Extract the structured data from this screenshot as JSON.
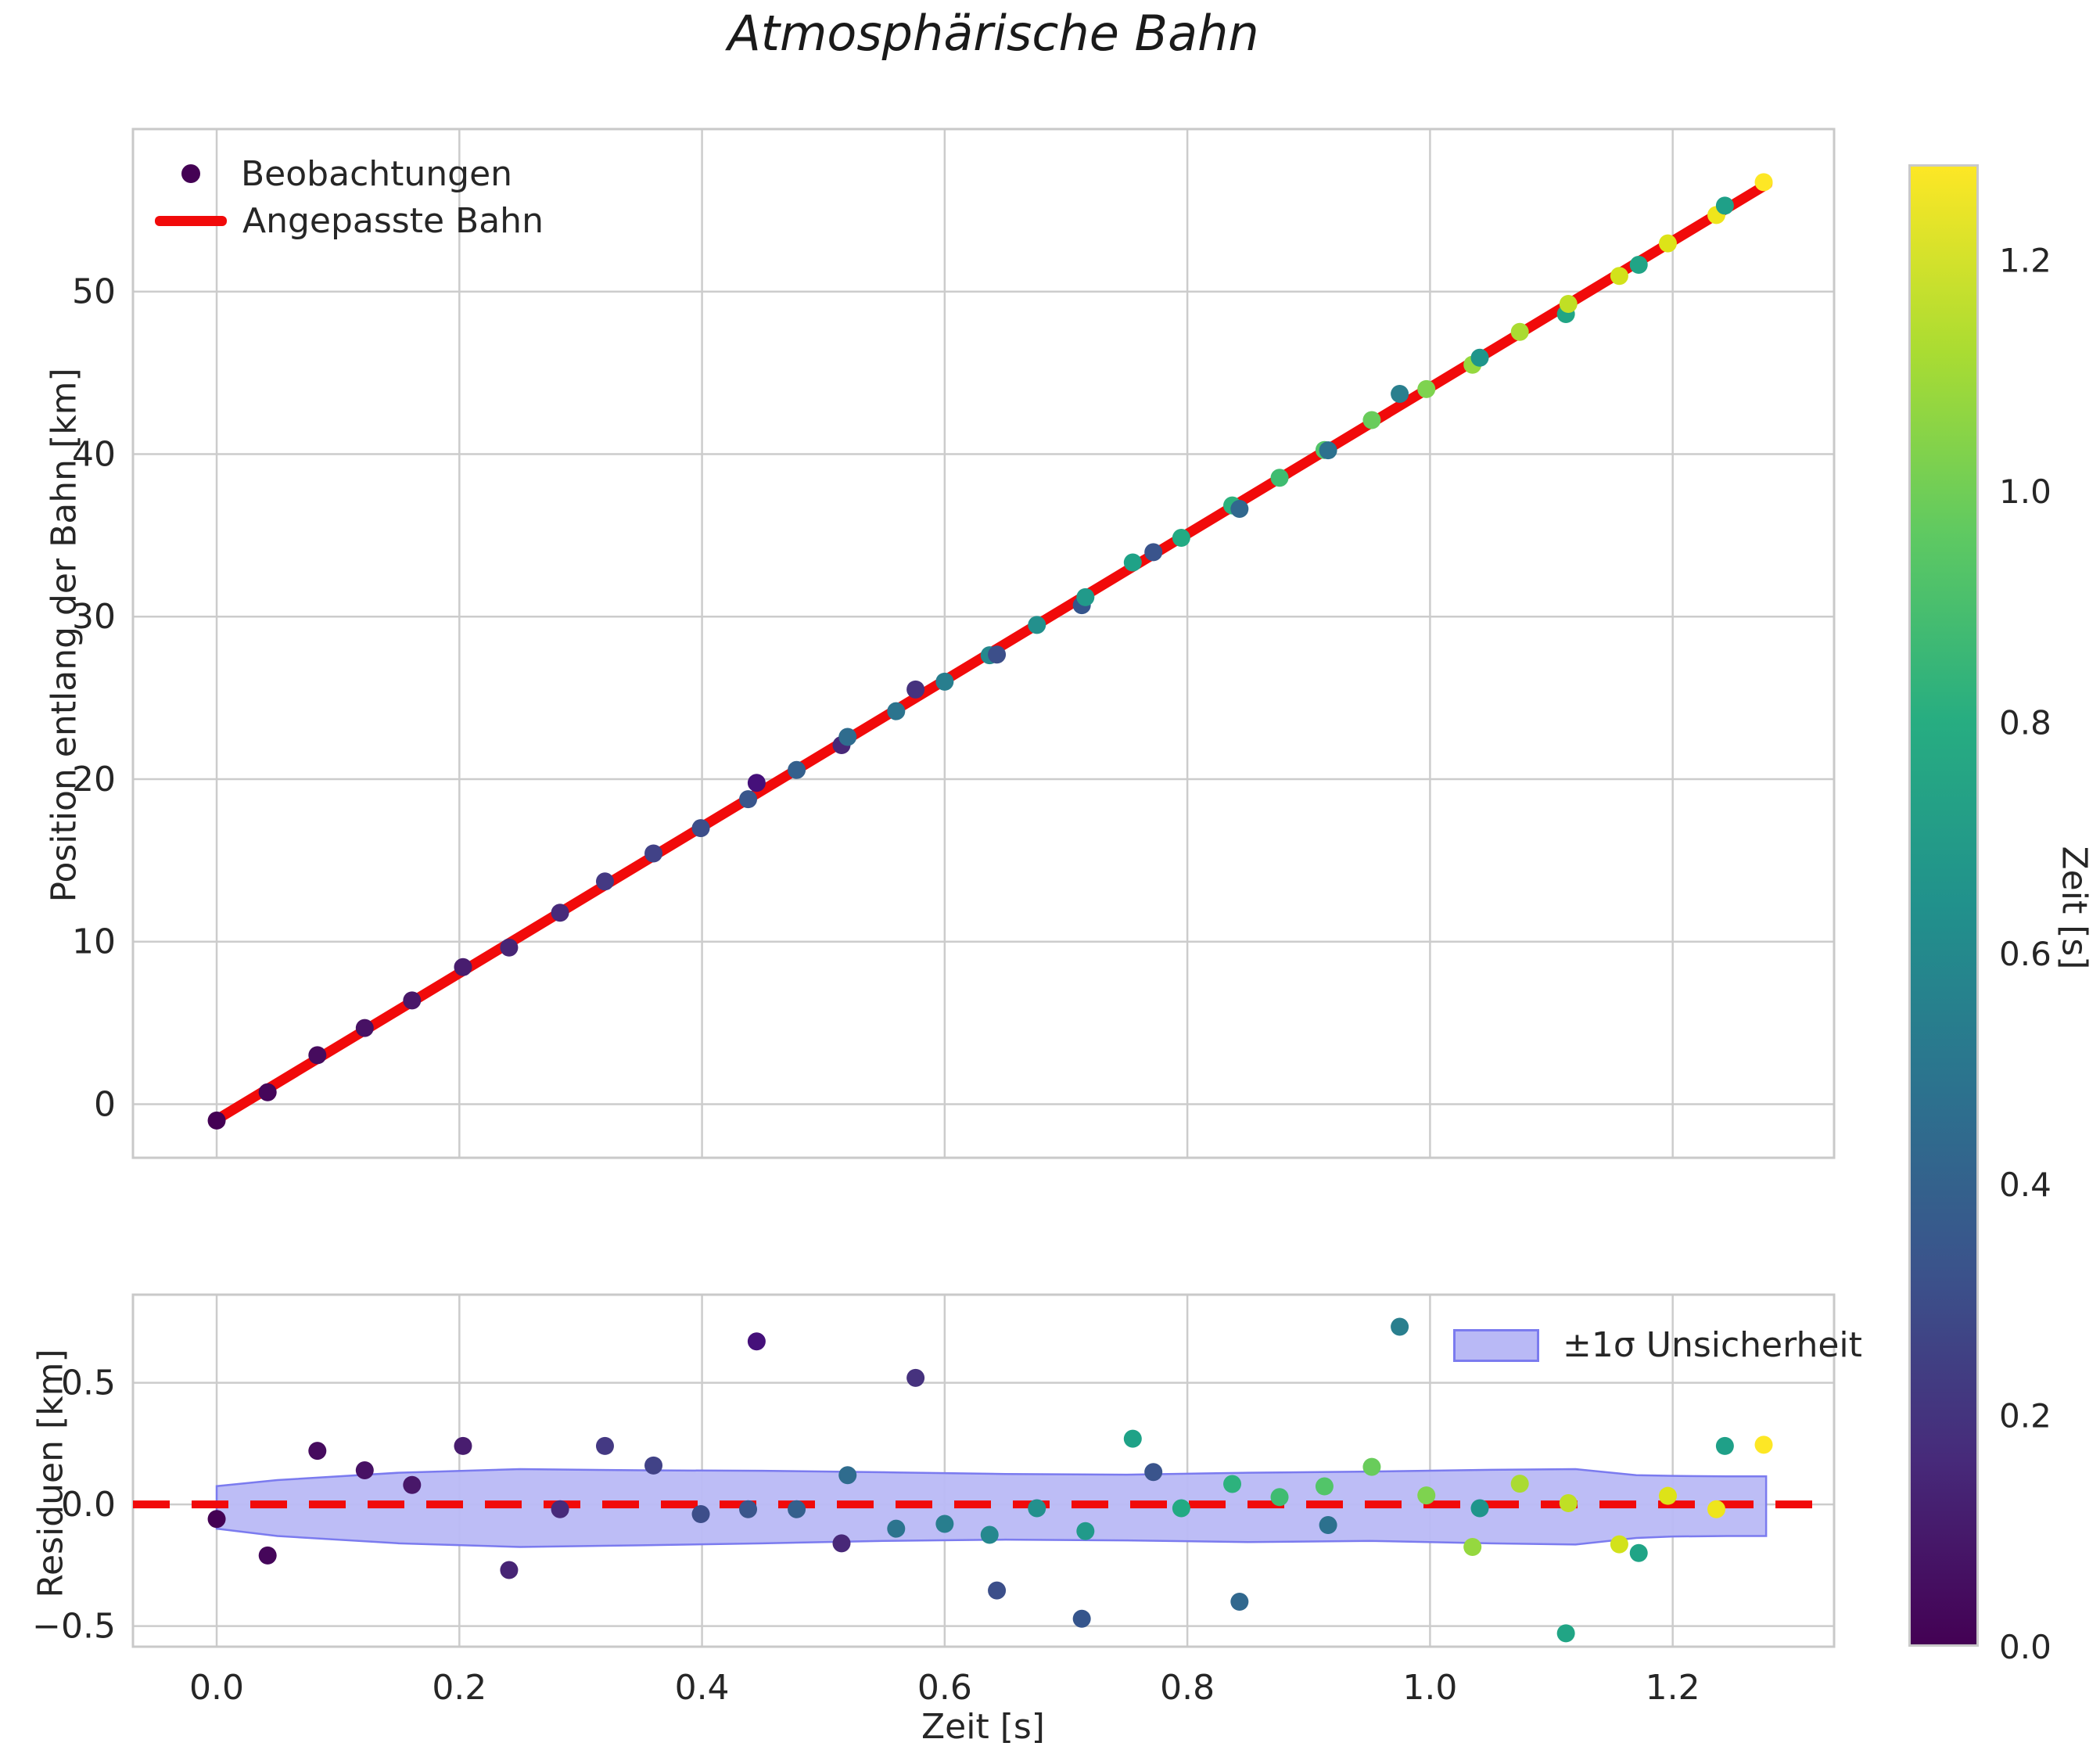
{
  "title": "Atmosphärische Bahn",
  "colors": {
    "fit_line": "#f10a0a",
    "zero_line": "#f10a0a",
    "band_fill": "#b9b9f6",
    "band_edge": "#7b7bef",
    "grid": "#cccccc",
    "spine": "#c9c9c9",
    "text": "#262626",
    "legend_marker": "#440154",
    "viridis_stops": [
      "#440154",
      "#472a7a",
      "#3b528b",
      "#2c728e",
      "#21918c",
      "#27ad81",
      "#5ec962",
      "#aadc32",
      "#fde725"
    ]
  },
  "top_plot": {
    "ylabel": "Position entlang der Bahn [km]",
    "ytick_labels": [
      "0",
      "10",
      "20",
      "30",
      "40",
      "50"
    ],
    "legend": {
      "observations_label": "Beobachtungen",
      "fit_label": "Angepasste Bahn"
    }
  },
  "bottom_plot": {
    "ylabel": "Residuen [km]",
    "xlabel": "Zeit [s]",
    "ytick_labels": [
      "0.5",
      "0.0",
      "−0.5"
    ],
    "xtick_labels": [
      "0.0",
      "0.2",
      "0.4",
      "0.6",
      "0.8",
      "1.0",
      "1.2"
    ],
    "legend_label": "±1σ Unsicherheit"
  },
  "colorbar": {
    "label": "Zeit [s]",
    "tick_labels": [
      "0.0",
      "0.2",
      "0.4",
      "0.6",
      "0.8",
      "1.0",
      "1.2"
    ],
    "tick_values": [
      0.0,
      0.2,
      0.4,
      0.6,
      0.8,
      1.0,
      1.2
    ],
    "vmin": 0.0,
    "vmax": 1.283
  },
  "chart_data": [
    {
      "type": "scatter",
      "title": "Atmosphärische Bahn",
      "ylabel": "Position entlang der Bahn [km]",
      "xlim": [
        -0.069,
        1.333
      ],
      "ylim": [
        -3.3,
        60.0
      ],
      "yticks": [
        0,
        10,
        20,
        30,
        40,
        50
      ],
      "xticks": [
        0.0,
        0.2,
        0.4,
        0.6,
        0.8,
        1.0,
        1.2
      ],
      "grid": true,
      "legend_position": "upper left",
      "fit": {
        "name": "Angepasste Bahn",
        "intercept": -0.95,
        "slope": 45.05,
        "t_start": 0.0,
        "t_end": 1.278
      },
      "note": "observation position = intercept + slope*t + residual; points colored by Zeit via viridis",
      "points": [
        {
          "t": 0.0,
          "residual": -0.06,
          "color": "#440154"
        },
        {
          "t": 0.042,
          "residual": -0.21,
          "color": "#45065a"
        },
        {
          "t": 0.083,
          "residual": 0.22,
          "color": "#460b5e"
        },
        {
          "t": 0.122,
          "residual": 0.14,
          "color": "#471164"
        },
        {
          "t": 0.161,
          "residual": 0.08,
          "color": "#481769"
        },
        {
          "t": 0.203,
          "residual": 0.24,
          "color": "#481d6f"
        },
        {
          "t": 0.241,
          "residual": -0.27,
          "color": "#472575"
        },
        {
          "t": 0.283,
          "residual": -0.02,
          "color": "#472a7a"
        },
        {
          "t": 0.32,
          "residual": 0.24,
          "color": "#443983"
        },
        {
          "t": 0.36,
          "residual": 0.16,
          "color": "#414287"
        },
        {
          "t": 0.399,
          "residual": -0.04,
          "color": "#3d4e8a"
        },
        {
          "t": 0.438,
          "residual": -0.02,
          "color": "#39568c"
        },
        {
          "t": 0.445,
          "residual": 0.67,
          "color": "#45107a"
        },
        {
          "t": 0.478,
          "residual": -0.02,
          "color": "#34608d"
        },
        {
          "t": 0.515,
          "residual": -0.16,
          "color": "#482878"
        },
        {
          "t": 0.52,
          "residual": 0.12,
          "color": "#2f6c8e"
        },
        {
          "t": 0.56,
          "residual": -0.1,
          "color": "#2c748e"
        },
        {
          "t": 0.576,
          "residual": 0.52,
          "color": "#46327e"
        },
        {
          "t": 0.6,
          "residual": -0.08,
          "color": "#287e8e"
        },
        {
          "t": 0.637,
          "residual": -0.125,
          "color": "#25888e"
        },
        {
          "t": 0.643,
          "residual": -0.354,
          "color": "#3c4f8a"
        },
        {
          "t": 0.676,
          "residual": -0.016,
          "color": "#23908d"
        },
        {
          "t": 0.713,
          "residual": -0.47,
          "color": "#35558c"
        },
        {
          "t": 0.716,
          "residual": -0.11,
          "color": "#219a8a"
        },
        {
          "t": 0.755,
          "residual": 0.27,
          "color": "#1fa287"
        },
        {
          "t": 0.772,
          "residual": 0.133,
          "color": "#3a548c"
        },
        {
          "t": 0.795,
          "residual": -0.016,
          "color": "#22aa83"
        },
        {
          "t": 0.837,
          "residual": 0.084,
          "color": "#2db27d"
        },
        {
          "t": 0.843,
          "residual": -0.4,
          "color": "#31688e"
        },
        {
          "t": 0.876,
          "residual": 0.03,
          "color": "#3fbc71"
        },
        {
          "t": 0.913,
          "residual": 0.074,
          "color": "#52c569"
        },
        {
          "t": 0.916,
          "residual": -0.085,
          "color": "#2c718e"
        },
        {
          "t": 0.952,
          "residual": 0.154,
          "color": "#69cc5b"
        },
        {
          "t": 0.975,
          "residual": 0.73,
          "color": "#2a7f8e"
        },
        {
          "t": 0.997,
          "residual": 0.037,
          "color": "#7ed34f"
        },
        {
          "t": 1.035,
          "residual": -0.175,
          "color": "#95d83f"
        },
        {
          "t": 1.041,
          "residual": -0.016,
          "color": "#1f958b"
        },
        {
          "t": 1.074,
          "residual": 0.085,
          "color": "#aadb32"
        },
        {
          "t": 1.112,
          "residual": -0.53,
          "color": "#21a585"
        },
        {
          "t": 1.114,
          "residual": 0.005,
          "color": "#c0df25"
        },
        {
          "t": 1.156,
          "residual": -0.164,
          "color": "#d2e21b"
        },
        {
          "t": 1.172,
          "residual": -0.2,
          "color": "#20a486"
        },
        {
          "t": 1.196,
          "residual": 0.035,
          "color": "#dde318"
        },
        {
          "t": 1.236,
          "residual": -0.02,
          "color": "#eee51c"
        },
        {
          "t": 1.243,
          "residual": 0.24,
          "color": "#1fa088"
        },
        {
          "t": 1.275,
          "residual": 0.245,
          "color": "#fde725"
        }
      ]
    },
    {
      "type": "scatter",
      "ylabel": "Residuen [km]",
      "xlabel": "Zeit [s]",
      "xlim": [
        -0.069,
        1.333
      ],
      "ylim": [
        -0.585,
        0.862
      ],
      "yticks": [
        0.5,
        0.0,
        -0.5
      ],
      "xticks": [
        0.0,
        0.2,
        0.4,
        0.6,
        0.8,
        1.0,
        1.2
      ],
      "grid": true,
      "zero_line": 0.0,
      "legend_position": "upper right",
      "band": {
        "name": "±1σ Unsicherheit",
        "t": [
          0.0,
          0.05,
          0.15,
          0.25,
          0.35,
          0.45,
          0.55,
          0.65,
          0.75,
          0.85,
          0.95,
          1.05,
          1.12,
          1.17,
          1.2,
          1.245,
          1.277
        ],
        "hi": [
          0.075,
          0.1,
          0.13,
          0.145,
          0.14,
          0.138,
          0.132,
          0.125,
          0.122,
          0.13,
          0.135,
          0.142,
          0.145,
          0.12,
          0.117,
          0.115,
          0.115
        ],
        "lo": [
          -0.1,
          -0.13,
          -0.16,
          -0.175,
          -0.168,
          -0.16,
          -0.15,
          -0.145,
          -0.148,
          -0.155,
          -0.15,
          -0.16,
          -0.165,
          -0.138,
          -0.132,
          -0.13,
          -0.13
        ]
      },
      "points_note": "same (t, residual, color) points as top panel"
    }
  ]
}
